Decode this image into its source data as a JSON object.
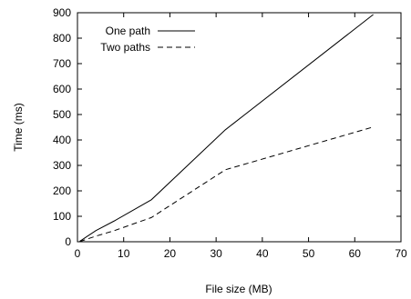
{
  "chart_data": {
    "type": "line",
    "title": "",
    "xlabel": "File size (MB)",
    "ylabel": "Time (ms)",
    "xlim": [
      0,
      70
    ],
    "ylim": [
      0,
      900
    ],
    "x_ticks": [
      0,
      10,
      20,
      30,
      40,
      50,
      60,
      70
    ],
    "y_ticks": [
      0,
      100,
      200,
      300,
      400,
      500,
      600,
      700,
      800,
      900
    ],
    "grid": false,
    "legend_placement": "top-left",
    "series": [
      {
        "name": "One path",
        "line_style": "solid",
        "color": "#000000",
        "points": [
          [
            0.5,
            2
          ],
          [
            1,
            8
          ],
          [
            2,
            20
          ],
          [
            4,
            44
          ],
          [
            8,
            82
          ],
          [
            16,
            165
          ],
          [
            32,
            440
          ],
          [
            64,
            893
          ]
        ]
      },
      {
        "name": "Two paths",
        "line_style": "dashed",
        "color": "#000000",
        "points": [
          [
            0.5,
            1
          ],
          [
            1,
            4
          ],
          [
            2,
            10
          ],
          [
            4,
            22
          ],
          [
            8,
            44
          ],
          [
            16,
            95
          ],
          [
            32,
            283
          ],
          [
            64,
            451
          ]
        ]
      }
    ]
  }
}
